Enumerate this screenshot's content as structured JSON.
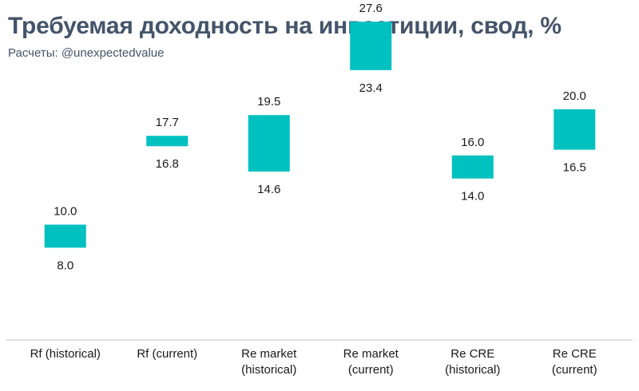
{
  "header": {
    "title": "Требуемая доходность на инвестиции, свод, %",
    "subtitle": "Расчеты: @unexpectedvalue"
  },
  "chart_data": {
    "type": "bar",
    "subtype": "floating-range",
    "title": "Требуемая доходность на инвестиции, свод, %",
    "subtitle": "Расчеты: @unexpectedvalue",
    "categories": [
      [
        "Rf (historical)"
      ],
      [
        "Rf (current)"
      ],
      [
        "Re market",
        "(historical)"
      ],
      [
        "Re market",
        "(current)"
      ],
      [
        "Re CRE",
        "(historical)"
      ],
      [
        "Re CRE",
        "(current)"
      ]
    ],
    "series": [
      {
        "low": 8.0,
        "high": 10.0,
        "low_label": "8.0",
        "high_label": "10.0"
      },
      {
        "low": 16.8,
        "high": 17.7,
        "low_label": "16.8",
        "high_label": "17.7"
      },
      {
        "low": 14.6,
        "high": 19.5,
        "low_label": "14.6",
        "high_label": "19.5"
      },
      {
        "low": 23.4,
        "high": 27.6,
        "low_label": "23.4",
        "high_label": "27.6"
      },
      {
        "low": 14.0,
        "high": 16.0,
        "low_label": "14.0",
        "high_label": "16.0"
      },
      {
        "low": 16.5,
        "high": 20.0,
        "low_label": "16.5",
        "high_label": "20.0"
      }
    ],
    "xlabel": "",
    "ylabel": "",
    "ylim": [
      0,
      30
    ],
    "grid": false,
    "legend": "none",
    "colors": {
      "bar": "#00c0c0",
      "axis": "#bfbfbf",
      "text": "#1a1a1a"
    }
  }
}
